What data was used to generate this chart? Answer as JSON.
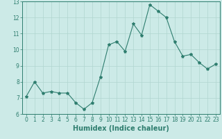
{
  "x": [
    0,
    1,
    2,
    3,
    4,
    5,
    6,
    7,
    8,
    9,
    10,
    11,
    12,
    13,
    14,
    15,
    16,
    17,
    18,
    19,
    20,
    21,
    22,
    23
  ],
  "y": [
    7.1,
    8.0,
    7.3,
    7.4,
    7.3,
    7.3,
    6.7,
    6.3,
    6.7,
    8.3,
    10.3,
    10.5,
    9.9,
    11.6,
    10.9,
    12.8,
    12.4,
    12.0,
    10.5,
    9.6,
    9.7,
    9.2,
    8.8,
    9.1
  ],
  "line_color": "#2e7d6e",
  "marker": "*",
  "marker_size": 3,
  "bg_color": "#cceae7",
  "grid_color": "#b0d5d0",
  "tick_color": "#2e7d6e",
  "xlabel": "Humidex (Indice chaleur)",
  "xlabel_fontsize": 7,
  "ylim": [
    6,
    13
  ],
  "xlim": [
    -0.5,
    23.5
  ],
  "yticks": [
    6,
    7,
    8,
    9,
    10,
    11,
    12,
    13
  ],
  "xticks": [
    0,
    1,
    2,
    3,
    4,
    5,
    6,
    7,
    8,
    9,
    10,
    11,
    12,
    13,
    14,
    15,
    16,
    17,
    18,
    19,
    20,
    21,
    22,
    23
  ],
  "tick_label_fontsize": 5.5
}
